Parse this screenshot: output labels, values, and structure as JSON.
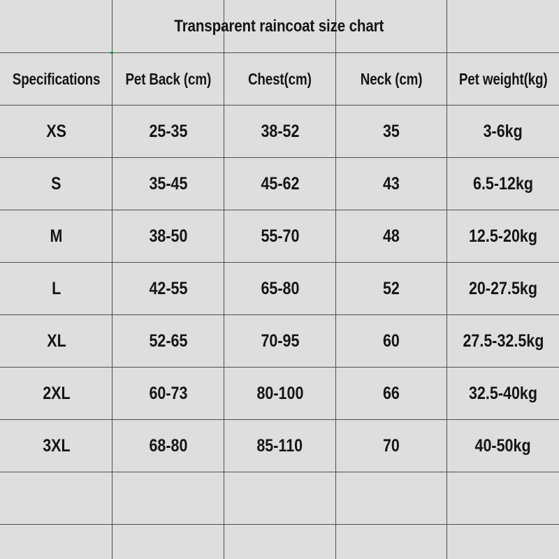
{
  "title": "Transparent raincoat size chart",
  "colors": {
    "background": "#dedede",
    "grid": "#4e4e4e",
    "text": "#151515",
    "selection_mark": "#1f9e3a"
  },
  "headers": [
    "Specifications",
    "Pet Back (cm)",
    "Chest(cm)",
    "Neck  (cm)",
    "Pet weight(kg)"
  ],
  "rows": [
    [
      "XS",
      "25-35",
      "38-52",
      "35",
      "3-6kg"
    ],
    [
      "S",
      "35-45",
      "45-62",
      "43",
      "6.5-12kg"
    ],
    [
      "M",
      "38-50",
      "55-70",
      "48",
      "12.5-20kg"
    ],
    [
      "L",
      "42-55",
      "65-80",
      "52",
      "20-27.5kg"
    ],
    [
      "XL",
      "52-65",
      "70-95",
      "60",
      "27.5-32.5kg"
    ],
    [
      "2XL",
      "60-73",
      "80-100",
      "66",
      "32.5-40kg"
    ],
    [
      "3XL",
      "68-80",
      "85-110",
      "70",
      "40-50kg"
    ]
  ]
}
